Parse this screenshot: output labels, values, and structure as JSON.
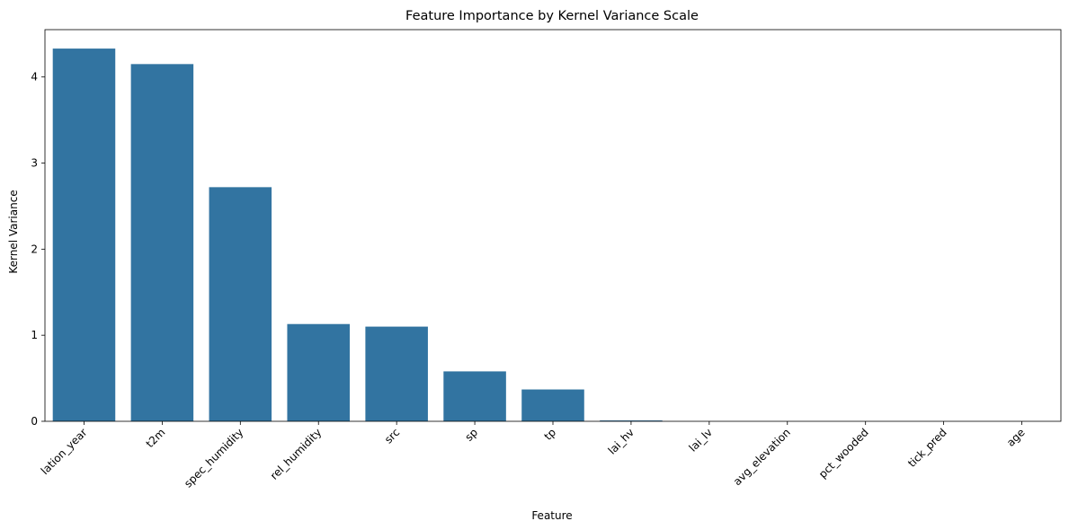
{
  "chart_data": {
    "type": "bar",
    "title": "Feature Importance by Kernel Variance Scale",
    "xlabel": "Feature",
    "ylabel": "Kernel Variance",
    "categories": [
      "lation_year",
      "t2m",
      "spec_humidity",
      "rel_humidity",
      "src",
      "sp",
      "tp",
      "lai_hv",
      "lai_lv",
      "avg_elevation",
      "pct_wooded",
      "tick_pred",
      "age"
    ],
    "values": [
      4.33,
      4.15,
      2.72,
      1.13,
      1.1,
      0.58,
      0.37,
      0.01,
      0.0,
      0.0,
      0.0,
      0.0,
      0.0
    ],
    "ylim": [
      0,
      4.55
    ],
    "yticks": [
      0,
      1,
      2,
      3,
      4
    ],
    "bar_color": "#3274a1",
    "grid": false,
    "legend": "none"
  }
}
